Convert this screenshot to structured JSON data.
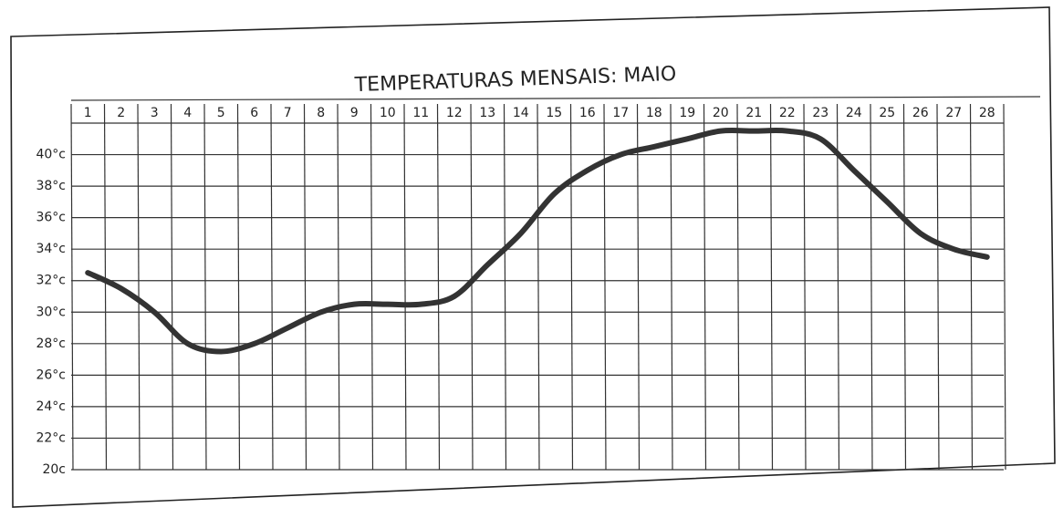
{
  "chart_data": {
    "type": "line",
    "title": "TEMPERATURAS MENSAIS: MAIO",
    "categories": [
      "1",
      "2",
      "3",
      "4",
      "5",
      "6",
      "7",
      "8",
      "9",
      "10",
      "11",
      "12",
      "13",
      "14",
      "15",
      "16",
      "17",
      "18",
      "19",
      "20",
      "21",
      "22",
      "23",
      "24",
      "25",
      "26",
      "27",
      "28"
    ],
    "values": [
      32.5,
      31.5,
      30,
      28,
      27.5,
      28,
      29,
      30,
      30.5,
      30.5,
      30.5,
      31,
      33,
      35,
      37.5,
      39,
      40,
      40.5,
      41,
      41.5,
      41.5,
      41.5,
      41,
      39,
      37,
      35,
      34,
      33.5
    ],
    "color": "#333333",
    "ylim": [
      20,
      42
    ],
    "yticks": [
      {
        "value": 20,
        "label": "20c"
      },
      {
        "value": 22,
        "label": "22°c"
      },
      {
        "value": 24,
        "label": "24°c"
      },
      {
        "value": 26,
        "label": "26°c"
      },
      {
        "value": 28,
        "label": "28°c"
      },
      {
        "value": 30,
        "label": "30°c"
      },
      {
        "value": 32,
        "label": "32°c"
      },
      {
        "value": 34,
        "label": "34°c"
      },
      {
        "value": 36,
        "label": "36°c"
      },
      {
        "value": 38,
        "label": "38°c"
      },
      {
        "value": 40,
        "label": "40°c"
      }
    ],
    "grid": true
  }
}
